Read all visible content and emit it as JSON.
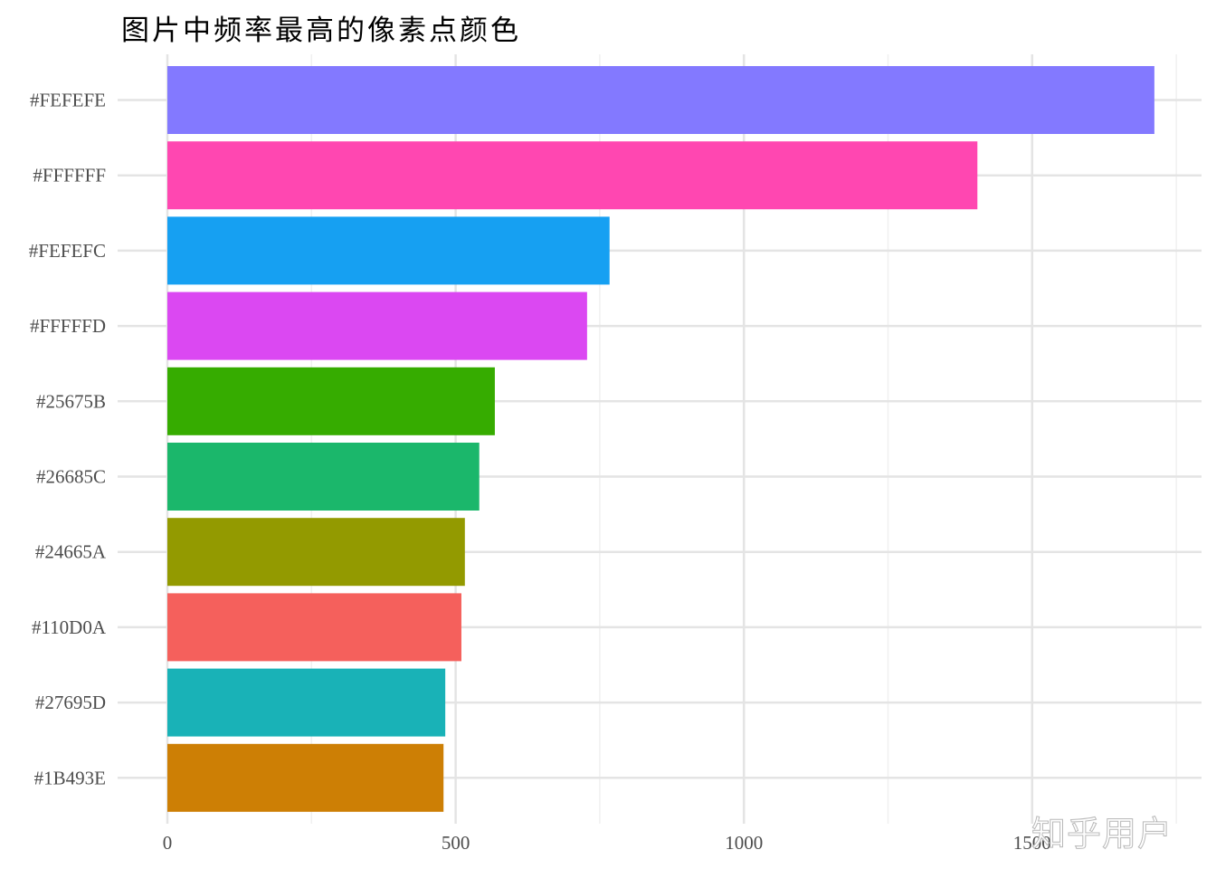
{
  "title": "图片中频率最高的像素点颜色",
  "watermark": "知乎用户",
  "chart_data": {
    "type": "bar",
    "orientation": "horizontal",
    "title": "图片中频率最高的像素点颜色",
    "xlabel": "",
    "ylabel": "",
    "xlim": [
      0,
      1650
    ],
    "x_ticks": [
      0,
      500,
      1000,
      1500
    ],
    "grid": true,
    "legend": "none",
    "categories": [
      "#FEFEFE",
      "#FFFFFF",
      "#FEFEFC",
      "#FFFFFD",
      "#25675B",
      "#26685C",
      "#24665A",
      "#110D0A",
      "#27695D",
      "#1B493E"
    ],
    "values": [
      1712,
      1405,
      767,
      728,
      568,
      541,
      516,
      510,
      482,
      479
    ],
    "colors": [
      "#8379FF",
      "#FF47B1",
      "#16A0F2",
      "#DB48F2",
      "#36AC00",
      "#1BB76B",
      "#939A00",
      "#F5605C",
      "#19B2B7",
      "#CD7F05"
    ]
  }
}
